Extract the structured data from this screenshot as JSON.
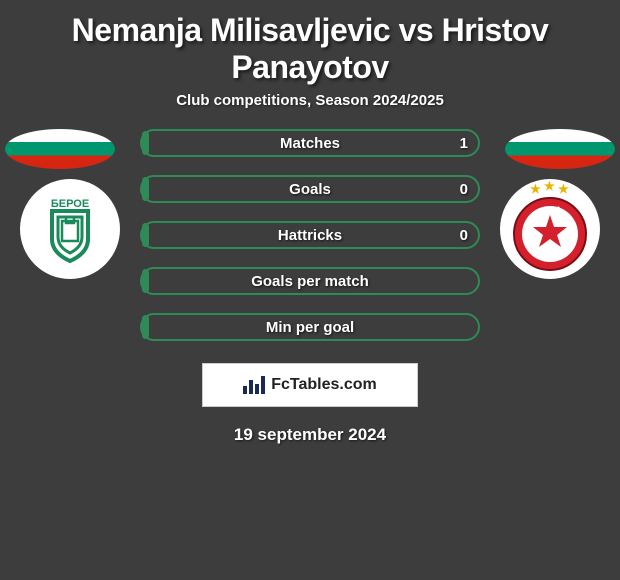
{
  "title": "Nemanja Milisavljevic vs Hristov Panayotov",
  "subtitle": "Club competitions, Season 2024/2025",
  "date": "19 september 2024",
  "footer_brand": "FcTables.com",
  "colors": {
    "left_accent": "#2e8b57",
    "right_accent": "#c8202a",
    "background": "#3d3d3d",
    "text": "#ffffff"
  },
  "flags": {
    "left": "bulgaria",
    "right": "bulgaria"
  },
  "clubs": {
    "left": {
      "name": "Beroe",
      "primary": "#1a8a5a",
      "secondary": "#ffffff"
    },
    "right": {
      "name": "CSKA",
      "primary": "#d4202c",
      "secondary": "#ffffff",
      "stars": 3
    }
  },
  "stats": [
    {
      "label": "Matches",
      "left_value": "",
      "right_value": "1",
      "left_ratio": 0.02,
      "right_ratio": 0.98
    },
    {
      "label": "Goals",
      "left_value": "",
      "right_value": "0",
      "left_ratio": 0.02,
      "right_ratio": 0.98
    },
    {
      "label": "Hattricks",
      "left_value": "",
      "right_value": "0",
      "left_ratio": 0.02,
      "right_ratio": 0.98
    },
    {
      "label": "Goals per match",
      "left_value": "",
      "right_value": "",
      "left_ratio": 0.02,
      "right_ratio": 0.98
    },
    {
      "label": "Min per goal",
      "left_value": "",
      "right_value": "",
      "left_ratio": 0.02,
      "right_ratio": 0.98
    }
  ]
}
